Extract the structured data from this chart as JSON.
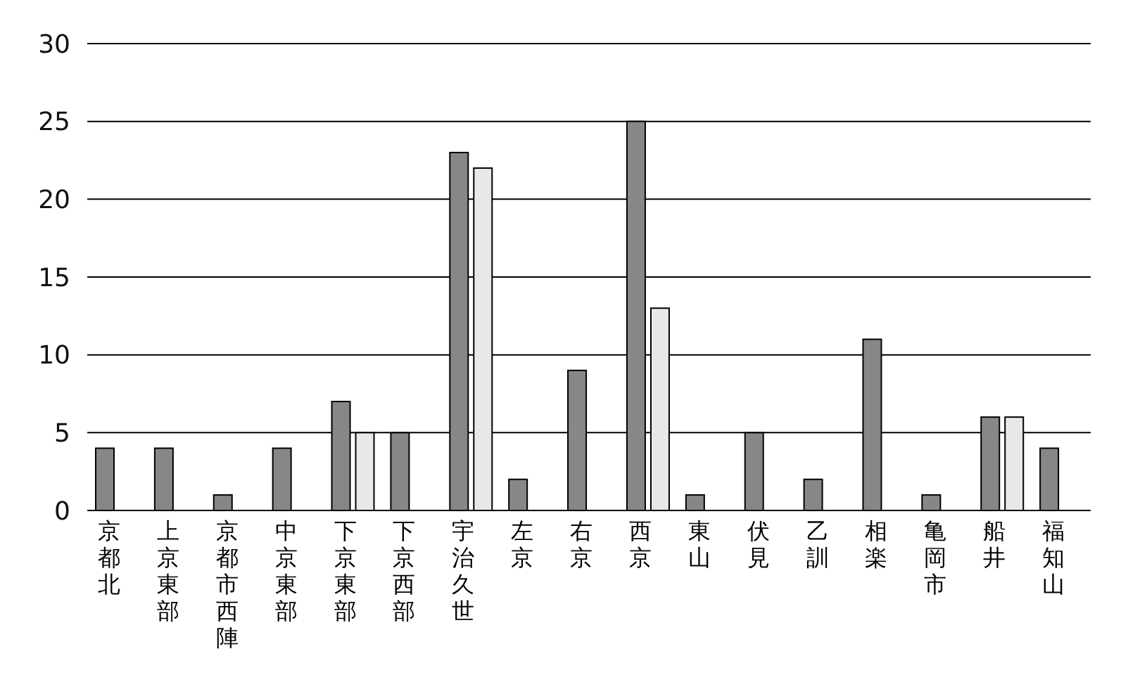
{
  "chart_data": {
    "type": "bar",
    "categories": [
      "京都北",
      "上京東部",
      "京都市西陣",
      "中京東部",
      "下京東部",
      "下京西部",
      "宇治久世",
      "左京",
      "右京",
      "西京",
      "東山",
      "伏見",
      "乙訓",
      "相楽",
      "亀岡市",
      "船井",
      "福知山"
    ],
    "series": [
      {
        "color": "#878787",
        "values": [
          4,
          4,
          1,
          4,
          7,
          5,
          23,
          2,
          9,
          25,
          1,
          5,
          2,
          11,
          1,
          6,
          4
        ]
      },
      {
        "color": "#e8e8e8",
        "values": [
          null,
          null,
          null,
          null,
          5,
          null,
          22,
          null,
          null,
          13,
          null,
          null,
          null,
          null,
          null,
          6,
          null
        ]
      }
    ],
    "ylim": [
      0,
      30
    ],
    "yticks": [
      0,
      5,
      10,
      15,
      20,
      25,
      30
    ],
    "grid": "y"
  }
}
